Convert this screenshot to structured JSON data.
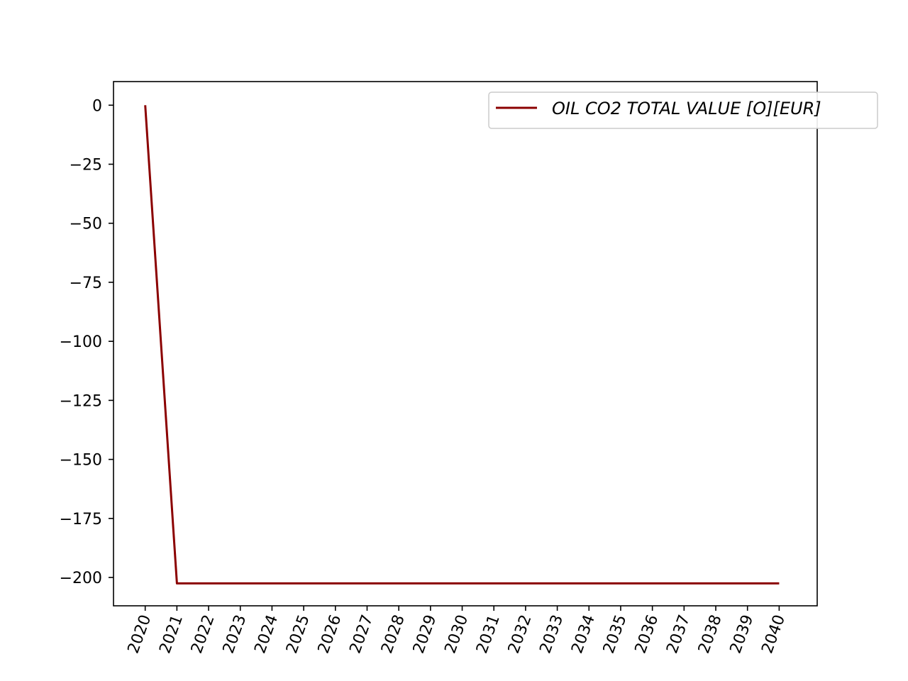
{
  "chart_data": {
    "type": "line",
    "title": "",
    "xlabel": "",
    "ylabel": "",
    "x": [
      2020,
      2021,
      2022,
      2023,
      2024,
      2025,
      2026,
      2027,
      2028,
      2029,
      2030,
      2031,
      2032,
      2033,
      2034,
      2035,
      2036,
      2037,
      2038,
      2039,
      2040
    ],
    "x_tick_labels": [
      "2020",
      "2021",
      "2022",
      "2023",
      "2024",
      "2025",
      "2026",
      "2027",
      "2028",
      "2029",
      "2030",
      "2031",
      "2032",
      "2033",
      "2034",
      "2035",
      "2036",
      "2037",
      "2038",
      "2039",
      "2040"
    ],
    "y_ticks": [
      0,
      -25,
      -50,
      -75,
      -100,
      -125,
      -150,
      -175,
      -200
    ],
    "y_tick_labels": [
      "0",
      "−25",
      "−50",
      "−75",
      "−100",
      "−125",
      "−150",
      "−175",
      "−200"
    ],
    "xlim": [
      2019,
      2041.2
    ],
    "ylim": [
      -212,
      10
    ],
    "grid": false,
    "legend_position": "top-right",
    "series": [
      {
        "name": "OIL CO2 TOTAL VALUE [O][EUR]",
        "color": "#8b0000",
        "values": [
          0,
          -202.5,
          -202.5,
          -202.5,
          -202.5,
          -202.5,
          -202.5,
          -202.5,
          -202.5,
          -202.5,
          -202.5,
          -202.5,
          -202.5,
          -202.5,
          -202.5,
          -202.5,
          -202.5,
          -202.5,
          -202.5,
          -202.5,
          -202.5
        ]
      }
    ]
  }
}
